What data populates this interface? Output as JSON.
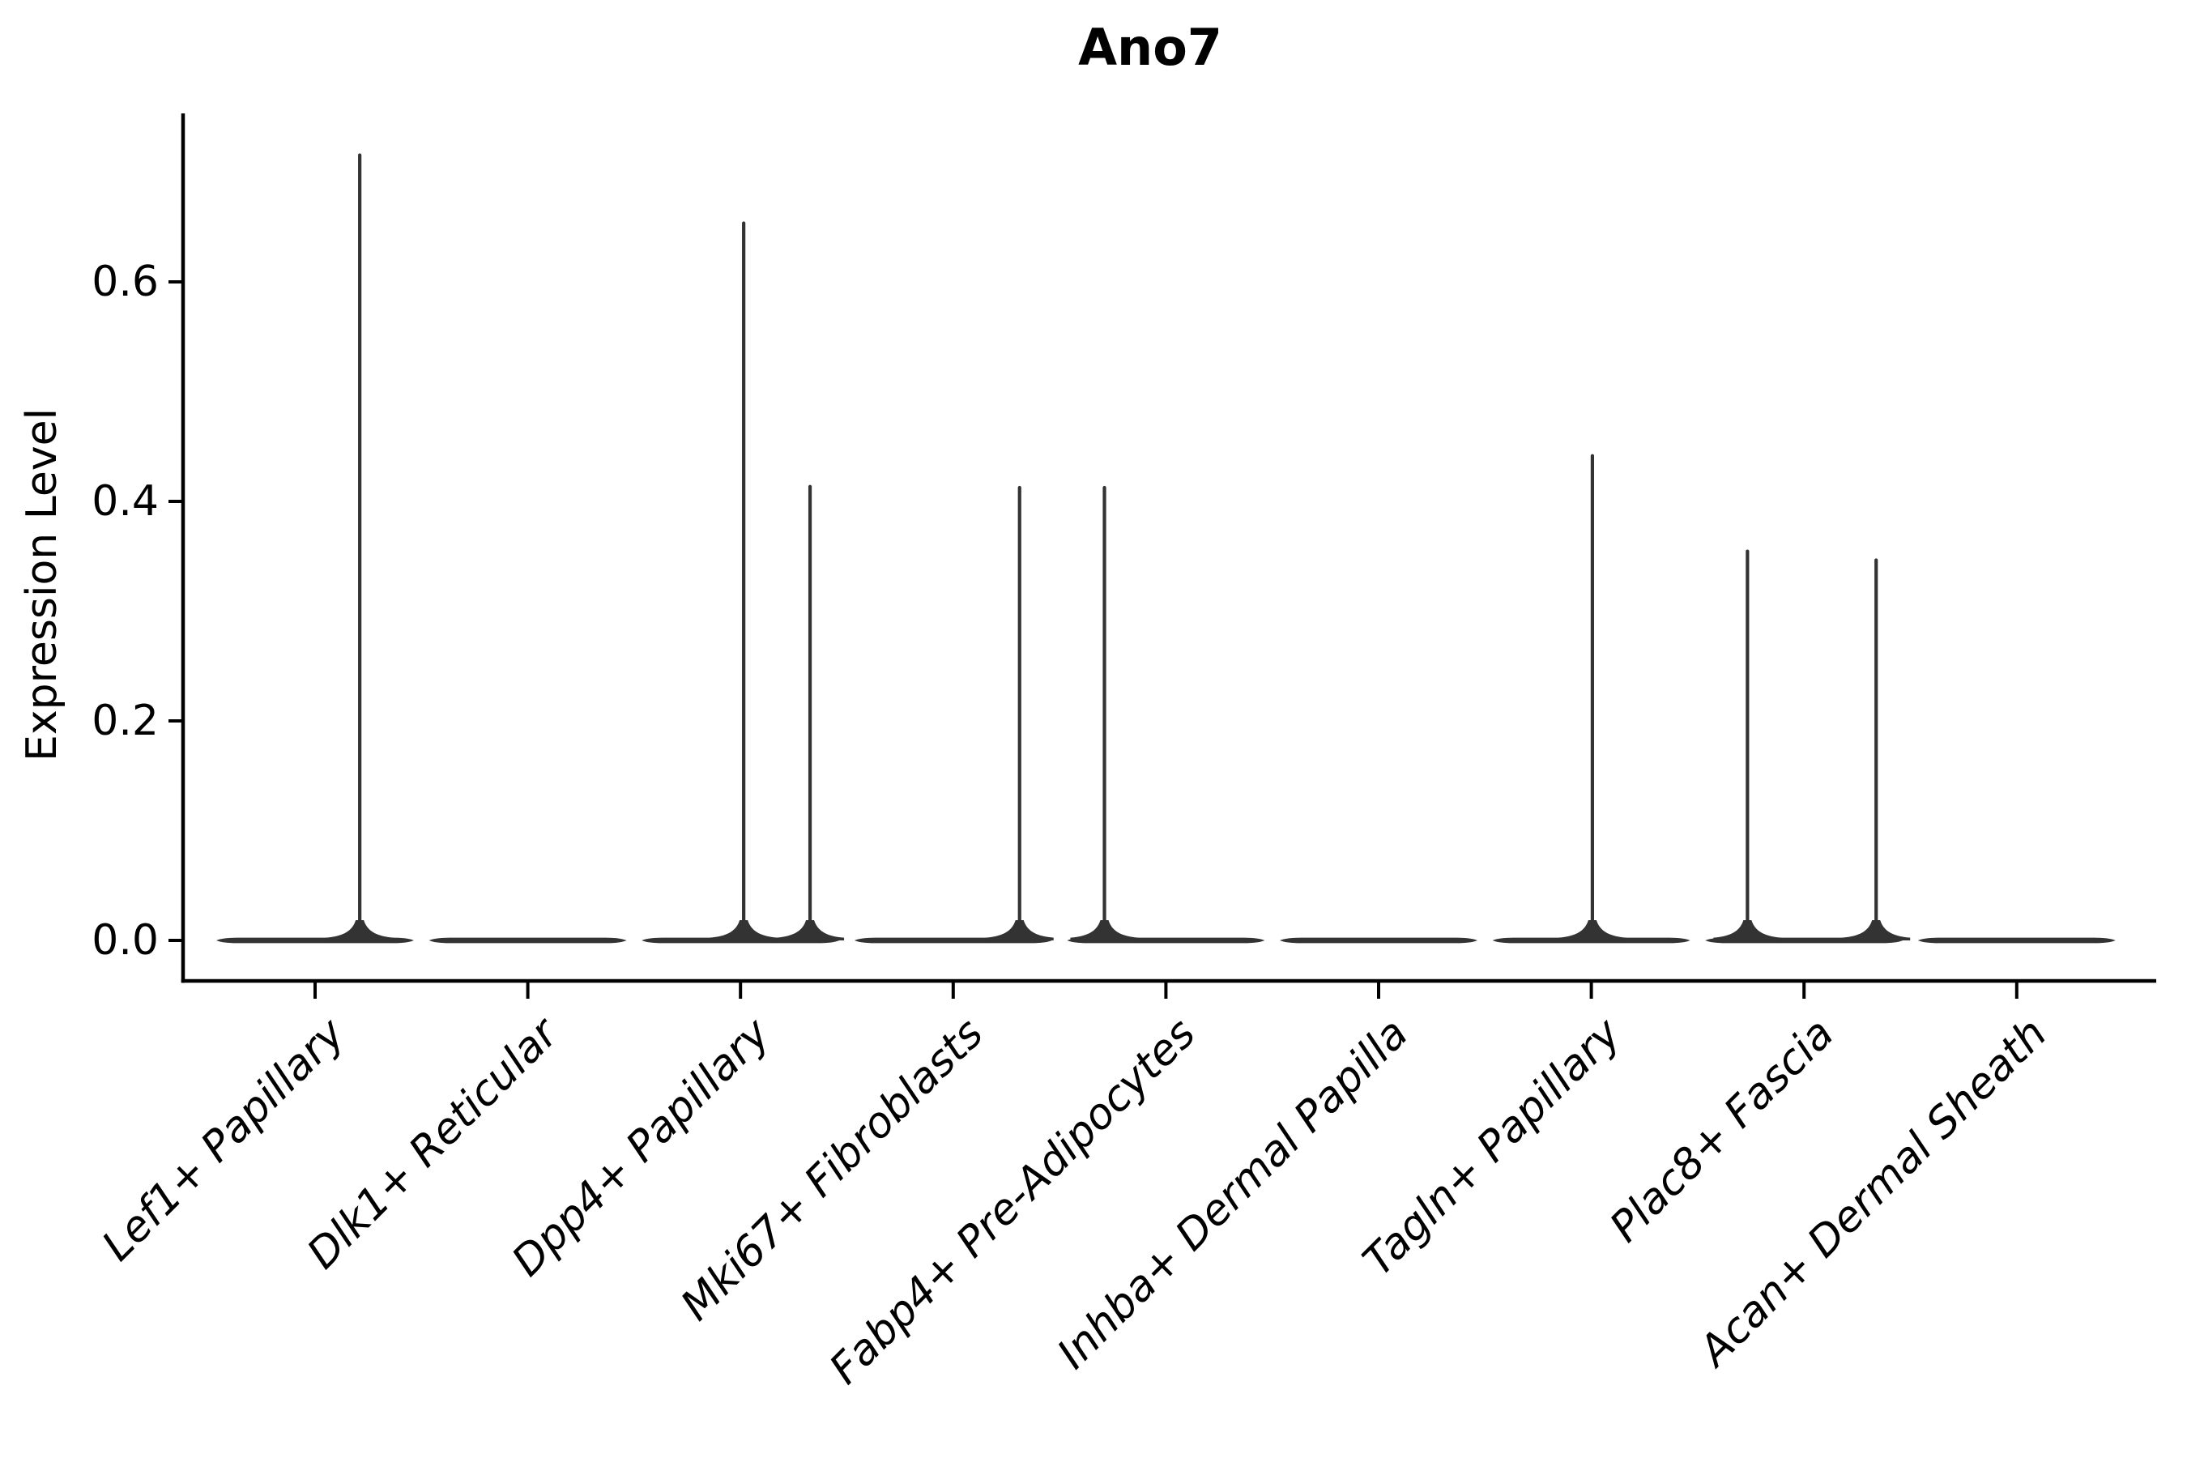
{
  "figure": {
    "title": "Ano7",
    "background": "#ffffff"
  },
  "chart_data": {
    "type": "violin",
    "title": "Ano7",
    "xlabel": "",
    "ylabel": "Expression Level",
    "categories": [
      "Lef1+ Papillary",
      "Dlk1+ Reticular",
      "Dpp4+ Papillary",
      "Mki67+ Fibroblasts",
      "Fabp4+ Pre-Adipocytes",
      "Inhba+ Dermal Papilla",
      "Tagln+ Papillary",
      "Plac8+ Fascia",
      "Acan+ Dermal Sheath"
    ],
    "y_ticks": [
      "0.0",
      "0.2",
      "0.4",
      "0.6"
    ],
    "y_tick_values": [
      0.0,
      0.2,
      0.4,
      0.6
    ],
    "ylim": [
      -0.037,
      0.77
    ],
    "grid": false,
    "legend": null,
    "violins": [
      {
        "category": "Lef1+ Papillary",
        "max_expression": 0.717,
        "spikes": [
          {
            "value": 0.717,
            "x_offset": 0.21
          }
        ]
      },
      {
        "category": "Dlk1+ Reticular",
        "max_expression": 0.0,
        "spikes": []
      },
      {
        "category": "Dpp4+ Papillary",
        "max_expression": 0.655,
        "spikes": [
          {
            "value": 0.655,
            "x_offset": 0.015
          },
          {
            "value": 0.415,
            "x_offset": 0.327
          }
        ]
      },
      {
        "category": "Mki67+ Fibroblasts",
        "max_expression": 0.414,
        "spikes": [
          {
            "value": 0.414,
            "x_offset": 0.312
          }
        ]
      },
      {
        "category": "Fabp4+ Pre-Adipocytes",
        "max_expression": 0.414,
        "spikes": [
          {
            "value": 0.414,
            "x_offset": -0.289
          }
        ]
      },
      {
        "category": "Inhba+ Dermal Papilla",
        "max_expression": 0.0,
        "spikes": []
      },
      {
        "category": "Tagln+ Papillary",
        "max_expression": 0.443,
        "spikes": [
          {
            "value": 0.443,
            "x_offset": 0.005
          }
        ]
      },
      {
        "category": "Plac8+ Fascia",
        "max_expression": 0.356,
        "spikes": [
          {
            "value": 0.356,
            "x_offset": -0.266
          },
          {
            "value": 0.348,
            "x_offset": 0.339
          }
        ]
      },
      {
        "category": "Acan+ Dermal Sheath",
        "max_expression": 0.0,
        "spikes": []
      }
    ],
    "style": {
      "ink_color": "#333333",
      "spine_color": "#000000",
      "text_color": "#000000",
      "background": "#ffffff"
    }
  }
}
